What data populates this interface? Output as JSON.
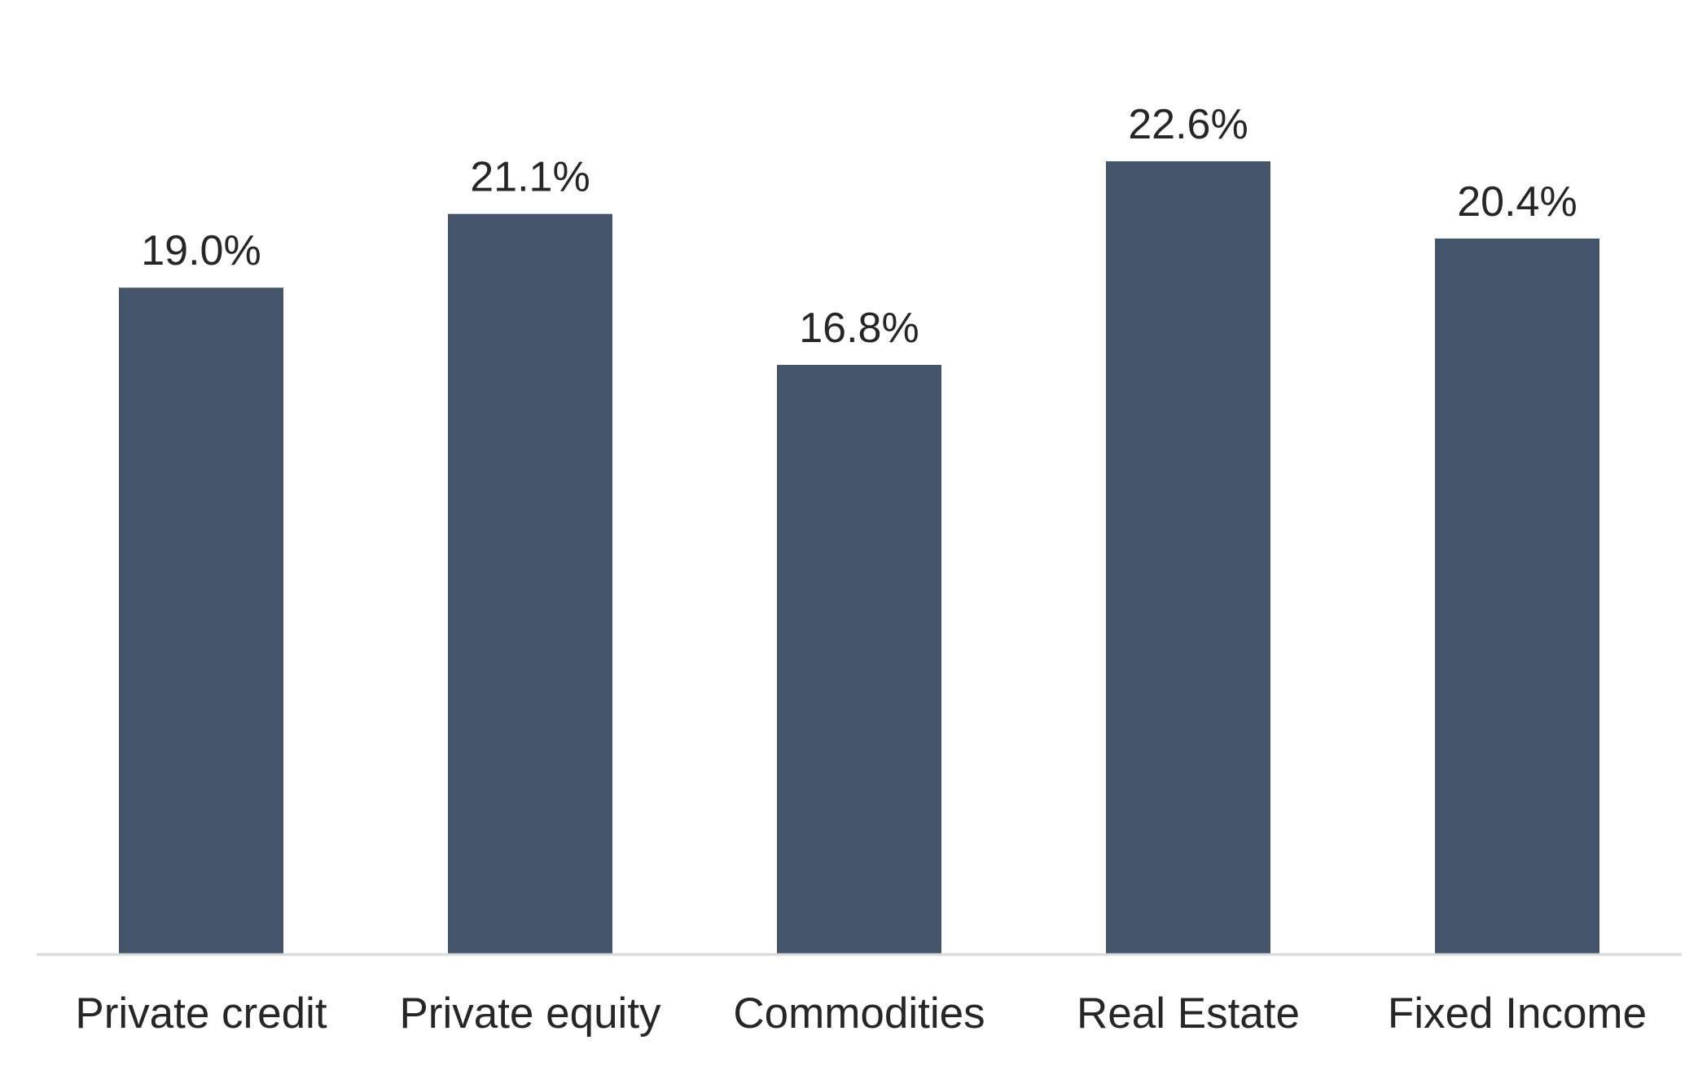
{
  "chart_data": {
    "type": "bar",
    "categories": [
      "Private credit",
      "Private equity",
      "Commodities",
      "Real Estate",
      "Fixed Income"
    ],
    "values": [
      19.0,
      21.1,
      16.8,
      22.6,
      20.4
    ],
    "data_labels": [
      "19.0%",
      "21.1%",
      "16.8%",
      "22.6%",
      "20.4%"
    ],
    "unit": "%",
    "ylim": [
      0,
      26.5
    ],
    "grid": false,
    "legend": "none",
    "bar_color": "#44546a"
  }
}
